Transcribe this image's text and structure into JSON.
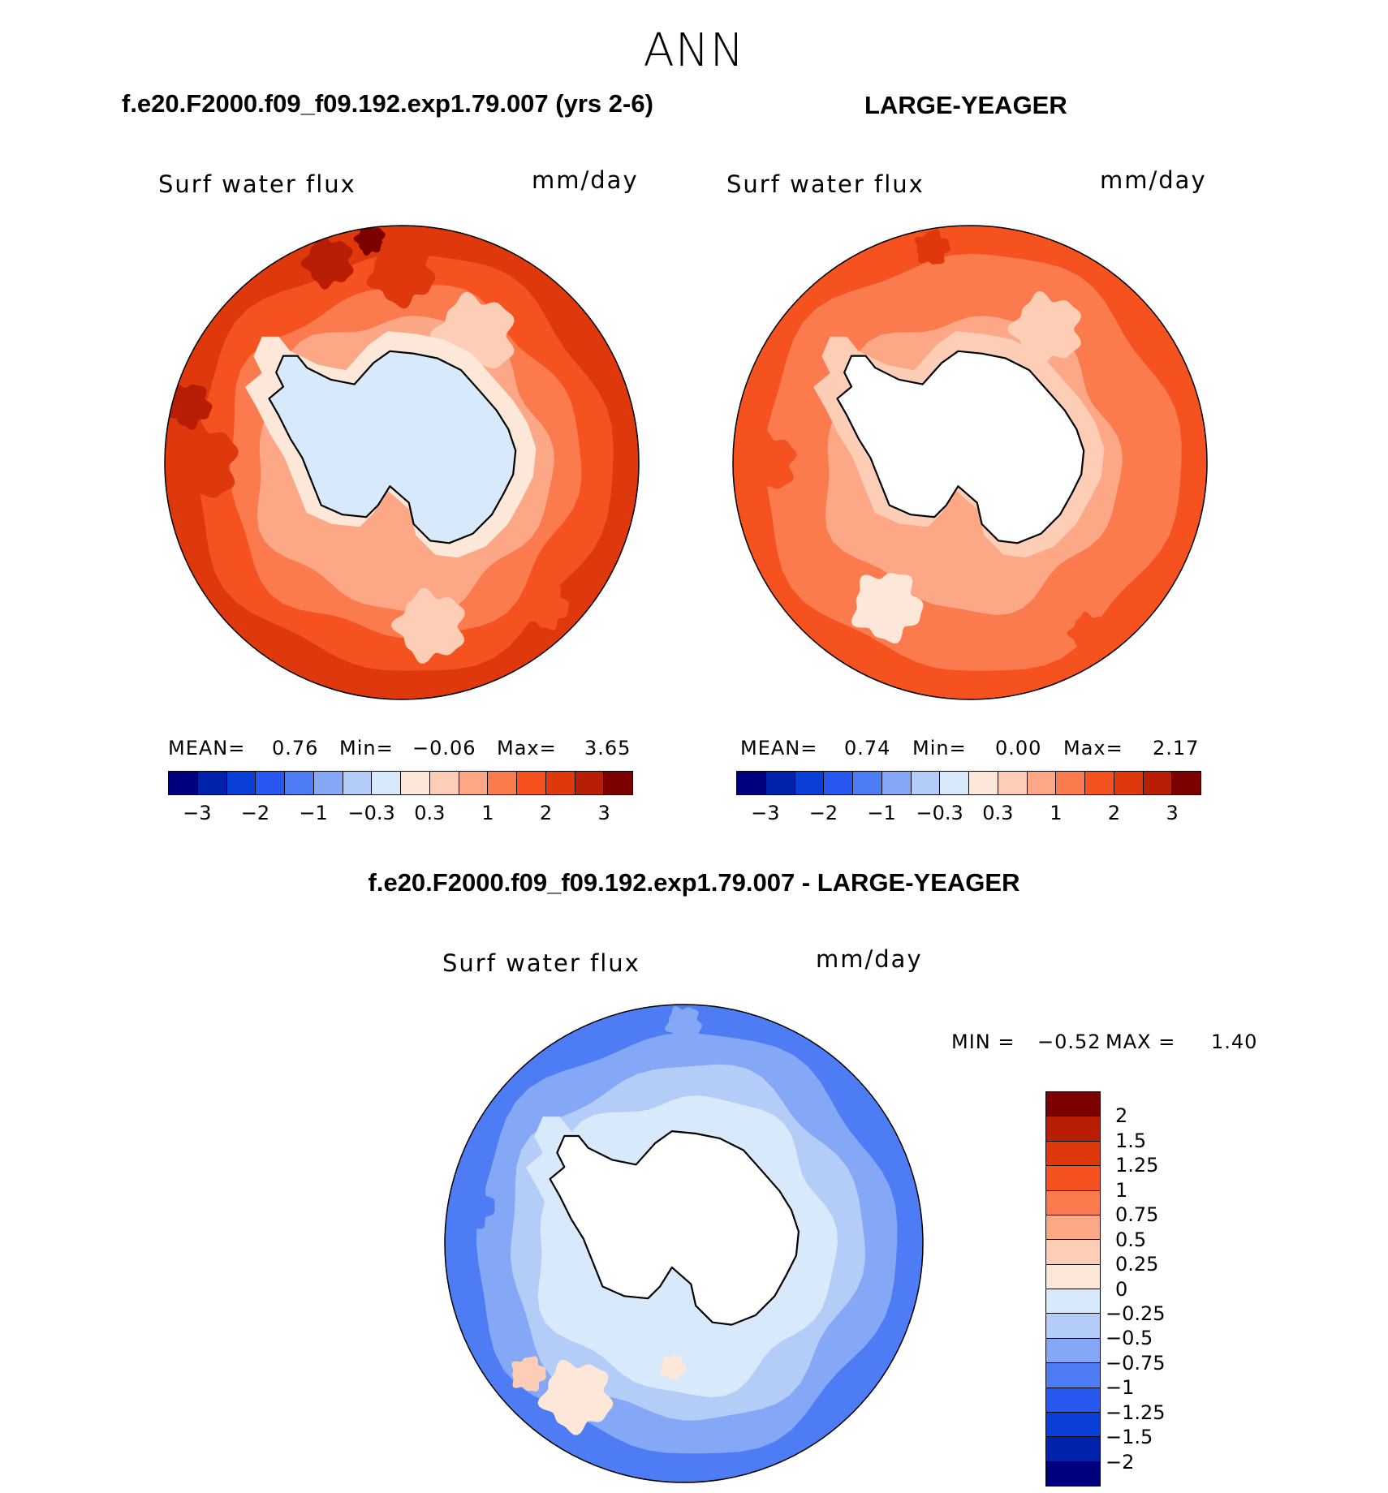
{
  "figure": {
    "title": "ANN",
    "left_title": "f.e20.F2000.f09_f09.192.exp1.79.007 (yrs 2-6)",
    "right_title": "LARGE-YEAGER",
    "diff_title": "f.e20.F2000.f09_f09.192.exp1.79.007 - LARGE-YEAGER"
  },
  "palette": {
    "main": [
      "#00007f",
      "#0022aa",
      "#0a3fd7",
      "#2759f0",
      "#4d7cf5",
      "#84a7f6",
      "#b4cdf8",
      "#d8e9fb",
      "#fde7d8",
      "#fdcdb5",
      "#fca785",
      "#fb7a4e",
      "#f5521f",
      "#de380c",
      "#b81e05",
      "#7d0000"
    ],
    "diff": [
      "#7d0000",
      "#b81e05",
      "#de380c",
      "#f5521f",
      "#fb7a4e",
      "#fca785",
      "#fdcdb5",
      "#fde7d8",
      "#d8e9fb",
      "#b4cdf8",
      "#84a7f6",
      "#4d7cf5",
      "#2759f0",
      "#0a3fd7",
      "#0022aa",
      "#00007f"
    ],
    "land": "#ffffff",
    "coast": "#000000"
  },
  "panels": {
    "left": {
      "variable": "Surf water flux",
      "units": "mm/day",
      "mean_label": "MEAN=",
      "mean": "0.76",
      "min_label": "Min=",
      "min": "−0.06",
      "max_label": "Max=",
      "max": "3.65",
      "land_filled": true
    },
    "right": {
      "variable": "Surf water flux",
      "units": "mm/day",
      "mean_label": "MEAN=",
      "mean": "0.74",
      "min_label": "Min=",
      "min": "0.00",
      "max_label": "Max=",
      "max": "2.17",
      "land_filled": false
    },
    "diff": {
      "variable": "Surf water flux",
      "units": "mm/day",
      "min_label": "MIN =",
      "min": "−0.52",
      "max_label": "MAX =",
      "max": "1.40"
    }
  },
  "colorbar_main": {
    "ticks": [
      "−3",
      "−2",
      "−1",
      "−0.3",
      "0.3",
      "1",
      "2",
      "3"
    ],
    "tick_boundaries": [
      1,
      3,
      5,
      7,
      9,
      11,
      13,
      15
    ]
  },
  "colorbar_diff": {
    "labels": [
      "2",
      "1.5",
      "1.25",
      "1",
      "0.75",
      "0.5",
      "0.25",
      "0",
      "−0.25",
      "−0.5",
      "−0.75",
      "−1",
      "−1.25",
      "−1.5",
      "−2"
    ]
  },
  "map_fields": {
    "left": {
      "outer_classes": [
        13,
        12,
        11
      ],
      "ocean_base_class": 10,
      "shelf_class": 8,
      "interior_class": 7,
      "blobs": [
        {
          "a": 180,
          "r": 0.86,
          "s": 0.16,
          "c": 13
        },
        {
          "a": 195,
          "r": 0.93,
          "s": 0.09,
          "c": 14
        },
        {
          "a": 250,
          "r": 0.9,
          "s": 0.1,
          "c": 14
        },
        {
          "a": 262,
          "r": 0.95,
          "s": 0.06,
          "c": 15
        },
        {
          "a": 270,
          "r": 0.8,
          "s": 0.13,
          "c": 13
        },
        {
          "a": 45,
          "r": 0.86,
          "s": 0.09,
          "c": 12
        },
        {
          "a": 80,
          "r": 0.7,
          "s": 0.14,
          "c": 9
        },
        {
          "a": 300,
          "r": 0.62,
          "s": 0.16,
          "c": 9
        }
      ]
    },
    "right": {
      "outer_classes": [
        12,
        11,
        11
      ],
      "ocean_base_class": 10,
      "shelf_class": 9,
      "interior_class": -1,
      "blobs": [
        {
          "a": 180,
          "r": 0.86,
          "s": 0.12,
          "c": 12
        },
        {
          "a": 260,
          "r": 0.92,
          "s": 0.07,
          "c": 13
        },
        {
          "a": 55,
          "r": 0.88,
          "s": 0.08,
          "c": 12
        },
        {
          "a": 120,
          "r": 0.7,
          "s": 0.14,
          "c": 8
        },
        {
          "a": 300,
          "r": 0.65,
          "s": 0.14,
          "c": 9
        }
      ]
    },
    "diff": {
      "outer_classes": [
        4,
        5,
        6
      ],
      "ocean_base_class": 7,
      "shelf_class": 7,
      "interior_class": -1,
      "blobs": [
        {
          "a": 125,
          "r": 0.78,
          "s": 0.14,
          "c": 8
        },
        {
          "a": 140,
          "r": 0.85,
          "s": 0.07,
          "c": 9
        },
        {
          "a": 190,
          "r": 0.9,
          "s": 0.09,
          "c": 4
        },
        {
          "a": 270,
          "r": 0.92,
          "s": 0.07,
          "c": 5
        },
        {
          "a": 95,
          "r": 0.52,
          "s": 0.05,
          "c": 8
        }
      ]
    }
  }
}
